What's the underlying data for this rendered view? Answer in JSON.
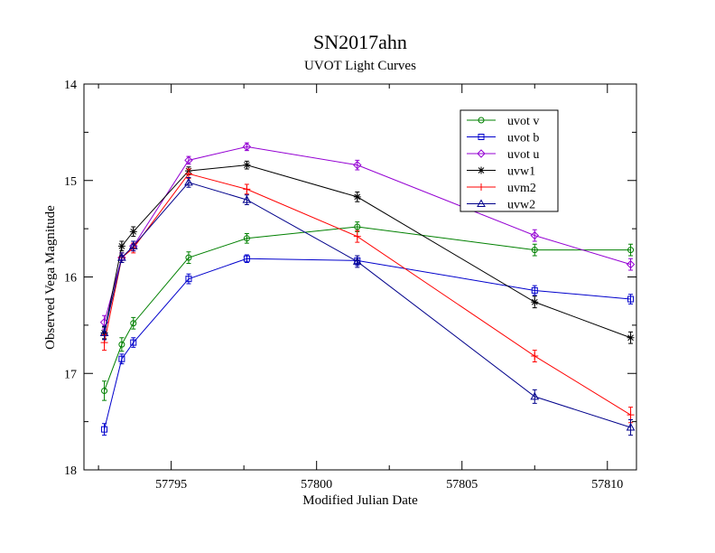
{
  "chart_data": {
    "type": "line",
    "title": "SN2017ahn",
    "subtitle": "UVOT Light Curves",
    "xlabel": "Modified Julian Date",
    "ylabel": "Observed Vega Magnitude",
    "xlim": [
      57792.0,
      57811.0
    ],
    "ylim": [
      18,
      14
    ],
    "y_inverted": true,
    "grid": false,
    "legend_position": "top-right",
    "x_ticks": [
      57795,
      57800,
      57805,
      57810
    ],
    "x_tick_labels": [
      "57795",
      "57800",
      "57805",
      "57810"
    ],
    "y_ticks": [
      14,
      15,
      16,
      17,
      18
    ],
    "y_tick_labels": [
      "14",
      "15",
      "16",
      "17",
      "18"
    ],
    "series": [
      {
        "name": "uvot v",
        "color": "#008000",
        "marker": "circle",
        "x": [
          57792.7,
          57793.3,
          57793.7,
          57795.6,
          57797.6,
          57801.4,
          57807.5,
          57810.8
        ],
        "y": [
          17.18,
          16.7,
          16.48,
          15.8,
          15.6,
          15.48,
          15.72,
          15.72
        ],
        "err": [
          0.1,
          0.07,
          0.06,
          0.06,
          0.05,
          0.05,
          0.06,
          0.06
        ]
      },
      {
        "name": "uvot b",
        "color": "#0000cc",
        "marker": "square",
        "x": [
          57792.7,
          57793.3,
          57793.7,
          57795.6,
          57797.6,
          57801.4,
          57807.5,
          57810.8
        ],
        "y": [
          17.58,
          16.85,
          16.68,
          16.02,
          15.81,
          15.83,
          16.14,
          16.23
        ],
        "err": [
          0.06,
          0.05,
          0.05,
          0.05,
          0.04,
          0.05,
          0.05,
          0.05
        ]
      },
      {
        "name": "uvot u",
        "color": "#9400d3",
        "marker": "diamond",
        "x": [
          57792.7,
          57793.3,
          57793.7,
          57795.6,
          57797.6,
          57801.4,
          57807.5,
          57810.8
        ],
        "y": [
          16.47,
          15.8,
          15.68,
          14.79,
          14.65,
          14.84,
          15.57,
          15.87
        ],
        "err": [
          0.07,
          0.05,
          0.05,
          0.04,
          0.04,
          0.05,
          0.06,
          0.06
        ]
      },
      {
        "name": "uvw1",
        "color": "#000000",
        "marker": "star",
        "x": [
          57792.7,
          57793.3,
          57793.7,
          57795.6,
          57797.6,
          57801.4,
          57807.5,
          57810.8
        ],
        "y": [
          16.58,
          15.68,
          15.53,
          14.9,
          14.84,
          15.17,
          16.26,
          16.63
        ],
        "err": [
          0.06,
          0.05,
          0.05,
          0.04,
          0.04,
          0.05,
          0.06,
          0.06
        ]
      },
      {
        "name": "uvm2",
        "color": "#ff0000",
        "marker": "plus",
        "x": [
          57792.7,
          57793.3,
          57793.7,
          57795.6,
          57797.6,
          57801.4,
          57807.5,
          57810.8
        ],
        "y": [
          16.68,
          15.8,
          15.7,
          14.93,
          15.09,
          15.58,
          16.82,
          17.43
        ],
        "err": [
          0.08,
          0.05,
          0.05,
          0.05,
          0.05,
          0.06,
          0.06,
          0.08
        ]
      },
      {
        "name": "uvw2",
        "color": "#00008b",
        "marker": "triangle",
        "x": [
          57792.7,
          57793.3,
          57793.7,
          57795.6,
          57797.6,
          57801.4,
          57807.5,
          57810.8
        ],
        "y": [
          16.58,
          15.8,
          15.68,
          15.02,
          15.2,
          15.84,
          17.24,
          17.56
        ],
        "err": [
          0.07,
          0.05,
          0.05,
          0.05,
          0.05,
          0.06,
          0.07,
          0.08
        ]
      }
    ]
  }
}
